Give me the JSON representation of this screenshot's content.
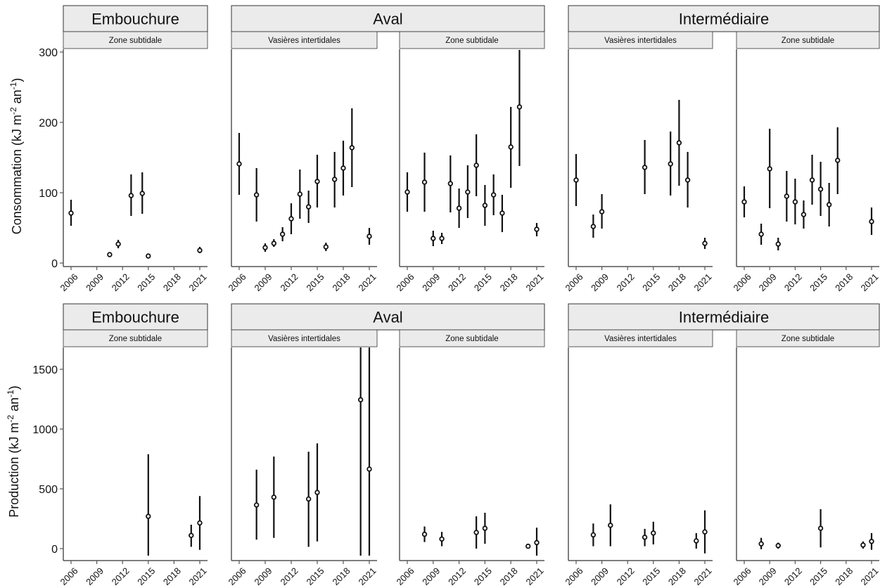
{
  "chart_data": [
    {
      "type": "scatter",
      "ylabel": "Consommation (kJ m-2 an-1)",
      "ylabel_parts": [
        "Consommation (kJ m",
        "-2",
        " an",
        "-1",
        ")"
      ],
      "ylim": [
        0,
        300
      ],
      "yticks": [
        0,
        100,
        200,
        300
      ],
      "x_ticks": [
        2006,
        2009,
        2012,
        2015,
        2018,
        2021
      ],
      "groups": [
        {
          "label": "Embouchure"
        },
        {
          "label": "Aval"
        },
        {
          "label": "Intermédiaire"
        }
      ],
      "panels": [
        {
          "group": "Embouchure",
          "zone": "Zone subtidale",
          "points": [
            {
              "x": 2006,
              "y": 71,
              "lo": 53,
              "hi": 90
            },
            {
              "x": 2010.5,
              "y": 12,
              "lo": 11,
              "hi": 13
            },
            {
              "x": 2011.5,
              "y": 27,
              "lo": 21,
              "hi": 33
            },
            {
              "x": 2013,
              "y": 96,
              "lo": 67,
              "hi": 126
            },
            {
              "x": 2014.3,
              "y": 99,
              "lo": 70,
              "hi": 129
            },
            {
              "x": 2015,
              "y": 10,
              "lo": 9,
              "hi": 11
            },
            {
              "x": 2021,
              "y": 18,
              "lo": 14,
              "hi": 23
            }
          ]
        },
        {
          "group": "Aval",
          "zone": "Vasières intertidales",
          "points": [
            {
              "x": 2006,
              "y": 141,
              "lo": 97,
              "hi": 185
            },
            {
              "x": 2008,
              "y": 97,
              "lo": 59,
              "hi": 135
            },
            {
              "x": 2009,
              "y": 22,
              "lo": 16,
              "hi": 28
            },
            {
              "x": 2010,
              "y": 28,
              "lo": 23,
              "hi": 34
            },
            {
              "x": 2011,
              "y": 41,
              "lo": 31,
              "hi": 51
            },
            {
              "x": 2012,
              "y": 63,
              "lo": 41,
              "hi": 85
            },
            {
              "x": 2013,
              "y": 98,
              "lo": 63,
              "hi": 133
            },
            {
              "x": 2014,
              "y": 80,
              "lo": 57,
              "hi": 103
            },
            {
              "x": 2015,
              "y": 116,
              "lo": 79,
              "hi": 154
            },
            {
              "x": 2016,
              "y": 23,
              "lo": 17,
              "hi": 29
            },
            {
              "x": 2017,
              "y": 119,
              "lo": 79,
              "hi": 158
            },
            {
              "x": 2018,
              "y": 135,
              "lo": 96,
              "hi": 174
            },
            {
              "x": 2019,
              "y": 164,
              "lo": 108,
              "hi": 220
            },
            {
              "x": 2021,
              "y": 38,
              "lo": 26,
              "hi": 50
            }
          ]
        },
        {
          "group": "Aval",
          "zone": "Zone subtidale",
          "points": [
            {
              "x": 2006,
              "y": 101,
              "lo": 73,
              "hi": 129
            },
            {
              "x": 2008,
              "y": 115,
              "lo": 73,
              "hi": 157
            },
            {
              "x": 2009,
              "y": 35,
              "lo": 24,
              "hi": 46
            },
            {
              "x": 2010,
              "y": 35,
              "lo": 27,
              "hi": 43
            },
            {
              "x": 2011,
              "y": 113,
              "lo": 72,
              "hi": 153
            },
            {
              "x": 2012,
              "y": 78,
              "lo": 50,
              "hi": 106
            },
            {
              "x": 2013,
              "y": 101,
              "lo": 64,
              "hi": 139
            },
            {
              "x": 2014,
              "y": 139,
              "lo": 95,
              "hi": 183
            },
            {
              "x": 2015,
              "y": 82,
              "lo": 53,
              "hi": 111
            },
            {
              "x": 2016,
              "y": 97,
              "lo": 68,
              "hi": 126
            },
            {
              "x": 2017,
              "y": 71,
              "lo": 44,
              "hi": 97
            },
            {
              "x": 2018,
              "y": 165,
              "lo": 107,
              "hi": 222
            },
            {
              "x": 2019,
              "y": 222,
              "lo": 138,
              "hi": 303
            },
            {
              "x": 2021,
              "y": 48,
              "lo": 38,
              "hi": 57
            }
          ]
        },
        {
          "group": "Intermédiaire",
          "zone": "Vasières intertidales",
          "points": [
            {
              "x": 2006,
              "y": 118,
              "lo": 81,
              "hi": 155
            },
            {
              "x": 2008,
              "y": 52,
              "lo": 36,
              "hi": 69
            },
            {
              "x": 2009,
              "y": 73,
              "lo": 49,
              "hi": 98
            },
            {
              "x": 2014,
              "y": 136,
              "lo": 98,
              "hi": 175
            },
            {
              "x": 2017,
              "y": 141,
              "lo": 96,
              "hi": 187
            },
            {
              "x": 2018,
              "y": 171,
              "lo": 110,
              "hi": 232
            },
            {
              "x": 2019,
              "y": 118,
              "lo": 79,
              "hi": 158
            },
            {
              "x": 2021,
              "y": 28,
              "lo": 20,
              "hi": 36
            }
          ]
        },
        {
          "group": "Intermédiaire",
          "zone": "Zone subtidale",
          "points": [
            {
              "x": 2006,
              "y": 87,
              "lo": 65,
              "hi": 109
            },
            {
              "x": 2008,
              "y": 41,
              "lo": 26,
              "hi": 56
            },
            {
              "x": 2009,
              "y": 134,
              "lo": 78,
              "hi": 191
            },
            {
              "x": 2010,
              "y": 27,
              "lo": 18,
              "hi": 36
            },
            {
              "x": 2011,
              "y": 95,
              "lo": 59,
              "hi": 131
            },
            {
              "x": 2012,
              "y": 87,
              "lo": 55,
              "hi": 120
            },
            {
              "x": 2013,
              "y": 69,
              "lo": 49,
              "hi": 89
            },
            {
              "x": 2014,
              "y": 118,
              "lo": 83,
              "hi": 154
            },
            {
              "x": 2015,
              "y": 105,
              "lo": 67,
              "hi": 144
            },
            {
              "x": 2016,
              "y": 83,
              "lo": 52,
              "hi": 114
            },
            {
              "x": 2017,
              "y": 146,
              "lo": 98,
              "hi": 193
            },
            {
              "x": 2021,
              "y": 59,
              "lo": 40,
              "hi": 79
            }
          ]
        }
      ]
    },
    {
      "type": "scatter",
      "ylabel": "Production (kJ m-2 an-1)",
      "ylabel_parts": [
        "Production (kJ m",
        "-2",
        " an",
        "-1",
        ")"
      ],
      "ylim": [
        -80,
        1700
      ],
      "yticks": [
        0,
        500,
        1000,
        1500
      ],
      "x_ticks": [
        2006,
        2009,
        2012,
        2015,
        2018,
        2021
      ],
      "groups": [
        {
          "label": "Embouchure"
        },
        {
          "label": "Aval"
        },
        {
          "label": "Intermédiaire"
        }
      ],
      "panels": [
        {
          "group": "Embouchure",
          "zone": "Zone subtidale",
          "points": [
            {
              "x": 2015,
              "y": 270,
              "lo": -80,
              "hi": 790
            },
            {
              "x": 2020,
              "y": 110,
              "lo": 15,
              "hi": 200
            },
            {
              "x": 2021,
              "y": 215,
              "lo": -10,
              "hi": 440
            }
          ]
        },
        {
          "group": "Aval",
          "zone": "Vasières intertidales",
          "points": [
            {
              "x": 2008,
              "y": 365,
              "lo": 75,
              "hi": 660
            },
            {
              "x": 2010,
              "y": 430,
              "lo": 90,
              "hi": 770
            },
            {
              "x": 2014,
              "y": 415,
              "lo": 15,
              "hi": 810
            },
            {
              "x": 2015,
              "y": 470,
              "lo": 60,
              "hi": 880
            },
            {
              "x": 2020,
              "y": 1245,
              "lo": -80,
              "hi": 1700
            },
            {
              "x": 2021,
              "y": 665,
              "lo": -80,
              "hi": 1700
            }
          ]
        },
        {
          "group": "Aval",
          "zone": "Zone subtidale",
          "points": [
            {
              "x": 2008,
              "y": 120,
              "lo": 55,
              "hi": 185
            },
            {
              "x": 2010,
              "y": 80,
              "lo": 20,
              "hi": 140
            },
            {
              "x": 2014,
              "y": 135,
              "lo": 0,
              "hi": 270
            },
            {
              "x": 2015,
              "y": 170,
              "lo": 40,
              "hi": 300
            },
            {
              "x": 2020,
              "y": 20,
              "lo": 15,
              "hi": 25
            },
            {
              "x": 2021,
              "y": 50,
              "lo": -80,
              "hi": 175
            }
          ]
        },
        {
          "group": "Intermédiaire",
          "zone": "Vasières intertidales",
          "points": [
            {
              "x": 2008,
              "y": 115,
              "lo": 20,
              "hi": 210
            },
            {
              "x": 2010,
              "y": 195,
              "lo": 20,
              "hi": 370
            },
            {
              "x": 2014,
              "y": 95,
              "lo": 20,
              "hi": 165
            },
            {
              "x": 2015,
              "y": 130,
              "lo": 35,
              "hi": 225
            },
            {
              "x": 2020,
              "y": 65,
              "lo": 0,
              "hi": 130
            },
            {
              "x": 2021,
              "y": 140,
              "lo": -40,
              "hi": 320
            }
          ]
        },
        {
          "group": "Intermédiaire",
          "zone": "Zone subtidale",
          "points": [
            {
              "x": 2008,
              "y": 40,
              "lo": -5,
              "hi": 90
            },
            {
              "x": 2010,
              "y": 25,
              "lo": 0,
              "hi": 50
            },
            {
              "x": 2015,
              "y": 170,
              "lo": 10,
              "hi": 330
            },
            {
              "x": 2020,
              "y": 30,
              "lo": 0,
              "hi": 60
            },
            {
              "x": 2021,
              "y": 60,
              "lo": -10,
              "hi": 130
            }
          ]
        }
      ]
    }
  ]
}
